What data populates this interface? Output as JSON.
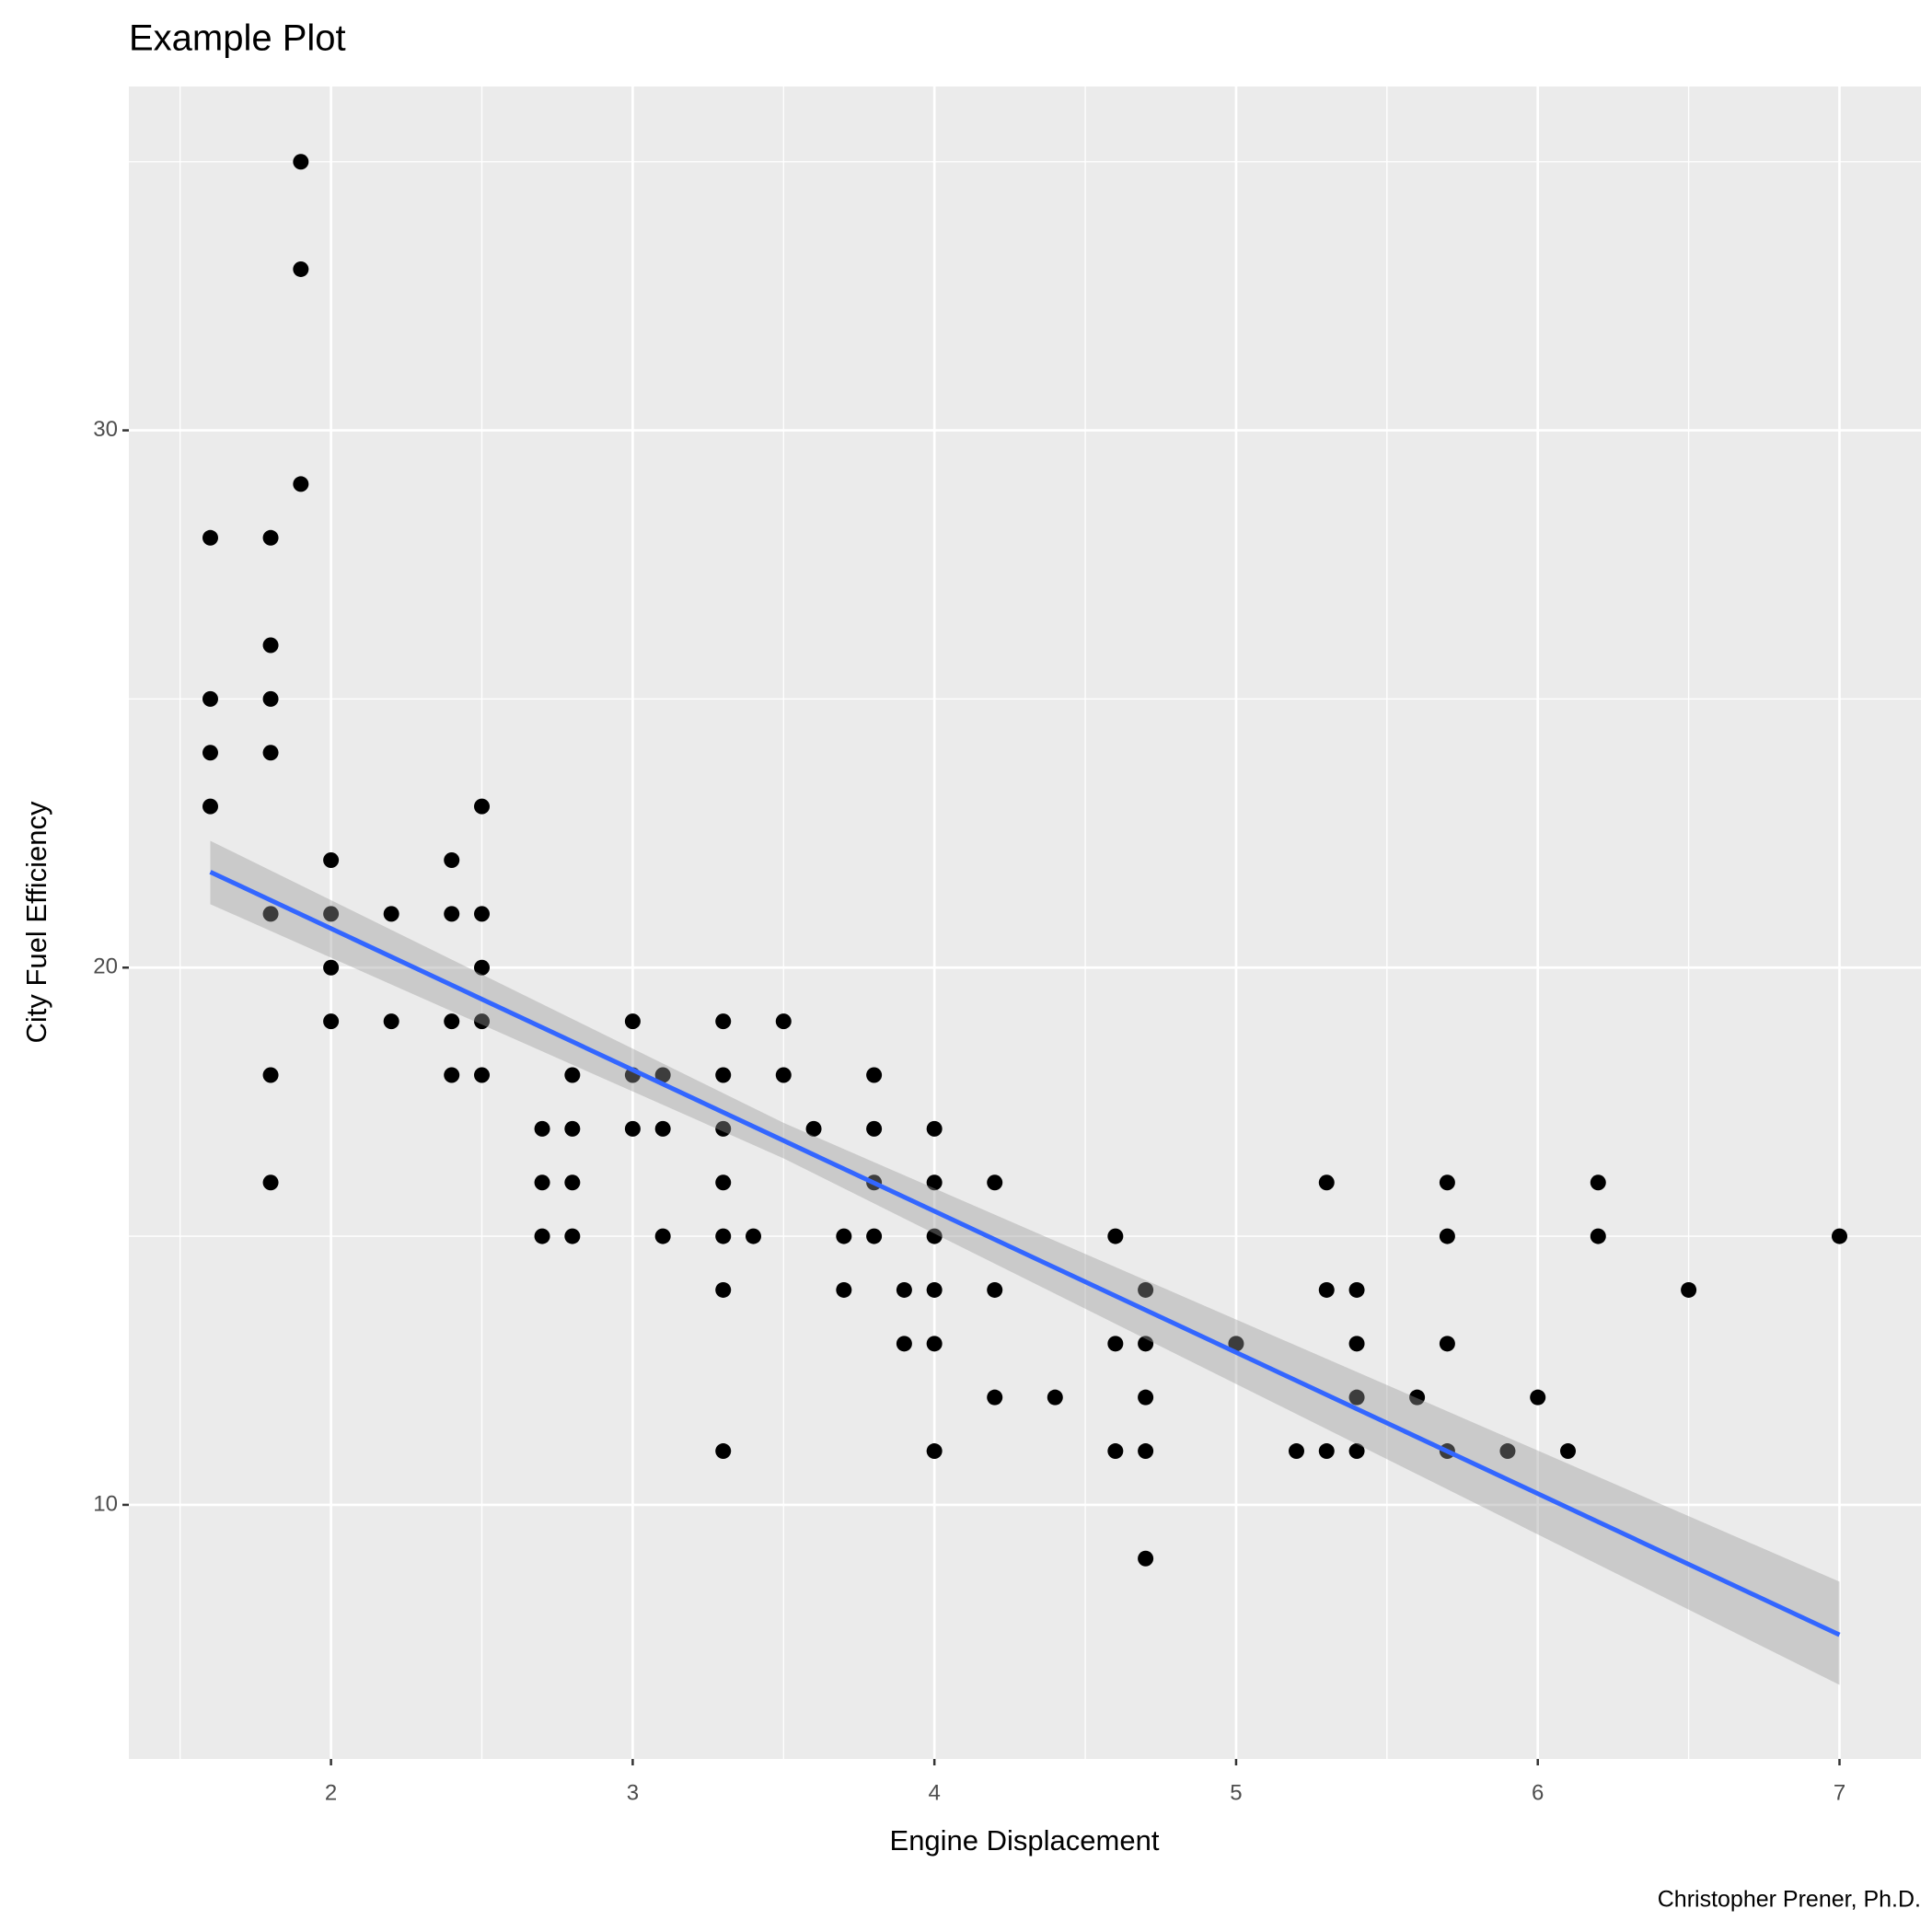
{
  "chart_data": {
    "type": "scatter",
    "title": "Example Plot",
    "x_label": "Engine Displacement",
    "y_label": "City Fuel Efficiency",
    "caption": "Christopher Prener, Ph.D.",
    "x": [
      1.9,
      1.9,
      1.9,
      1.6,
      1.8,
      1.8,
      1.6,
      1.8,
      1.6,
      1.8,
      1.6,
      2.5,
      2.0,
      2.4,
      1.8,
      2.0,
      2.2,
      2.4,
      2.5,
      2.0,
      2.5,
      2.0,
      2.2,
      2.4,
      2.5,
      3.0,
      3.3,
      3.5,
      1.8,
      2.4,
      2.5,
      2.8,
      3.0,
      3.1,
      3.3,
      3.5,
      3.8,
      2.7,
      2.8,
      3.0,
      3.1,
      3.3,
      3.6,
      3.8,
      4.0,
      1.8,
      2.7,
      2.8,
      3.3,
      3.8,
      4.0,
      4.2,
      5.3,
      5.7,
      6.2,
      2.7,
      2.8,
      3.1,
      3.3,
      3.4,
      3.7,
      3.8,
      4.0,
      4.6,
      5.7,
      6.2,
      7.0,
      3.3,
      3.7,
      3.9,
      4.0,
      4.2,
      4.7,
      5.3,
      5.4,
      6.5,
      3.9,
      4.0,
      4.6,
      4.7,
      5.0,
      5.4,
      5.7,
      4.2,
      4.4,
      4.7,
      5.4,
      5.6,
      6.0,
      3.3,
      4.0,
      4.6,
      4.7,
      5.2,
      5.3,
      5.4,
      5.7,
      5.9,
      6.1,
      4.7
    ],
    "y": [
      35,
      33,
      29,
      28,
      28,
      26,
      25,
      25,
      24,
      24,
      23,
      23,
      22,
      22,
      21,
      21,
      21,
      21,
      21,
      20,
      20,
      19,
      19,
      19,
      19,
      19,
      19,
      19,
      18,
      18,
      18,
      18,
      18,
      18,
      18,
      18,
      18,
      17,
      17,
      17,
      17,
      17,
      17,
      17,
      17,
      16,
      16,
      16,
      16,
      16,
      16,
      16,
      16,
      16,
      16,
      15,
      15,
      15,
      15,
      15,
      15,
      15,
      15,
      15,
      15,
      15,
      15,
      14,
      14,
      14,
      14,
      14,
      14,
      14,
      14,
      14,
      13,
      13,
      13,
      13,
      13,
      13,
      13,
      12,
      12,
      12,
      12,
      12,
      12,
      11,
      11,
      11,
      11,
      11,
      11,
      11,
      11,
      11,
      11,
      9
    ],
    "point_color": "#000000",
    "smooth": {
      "x": [
        1.6,
        3.5,
        7.0
      ],
      "y": [
        21.78,
        16.78,
        7.58
      ],
      "ymin": [
        21.18,
        16.45,
        6.65
      ],
      "ymax": [
        22.36,
        17.11,
        8.57
      ],
      "color": "#3366ff",
      "fill": "#999999"
    },
    "xlim": [
      1.33,
      7.27
    ],
    "ylim": [
      5.27,
      36.4
    ],
    "xticks": [
      2,
      3,
      4,
      5,
      6,
      7
    ],
    "yticks": [
      10,
      20,
      30
    ],
    "xminor": [
      1.5,
      2.5,
      3.5,
      4.5,
      5.5,
      6.5
    ],
    "yminor": [
      15,
      25,
      35
    ],
    "grid": true
  }
}
